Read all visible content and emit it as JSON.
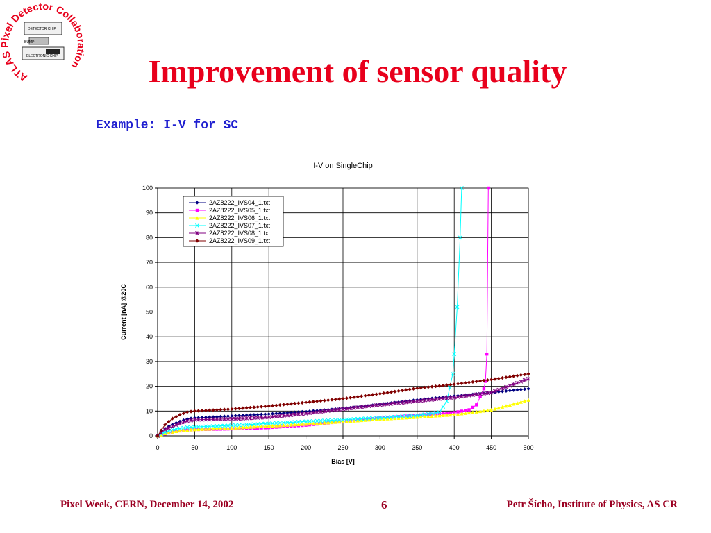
{
  "slide": {
    "title": "Improvement of sensor quality",
    "subtitle": "Example: I-V for SC",
    "footer_left": "Pixel Week, CERN, December 14,  2002",
    "page_number": "6",
    "footer_right": "Petr Šícho, Institute of Physics, AS CR"
  },
  "logo": {
    "ring_text": "ATLAS Pixel Detector Collaboration",
    "labels": [
      "DETECTOR CHIP",
      "BUMP",
      "ELECTRONIC CHIP"
    ],
    "color": "#e8001c"
  },
  "chart_data": {
    "type": "line",
    "title": "I-V on SingleChip",
    "xlabel": "Bias [V]",
    "ylabel": "Current [nA] @20C",
    "xlim": [
      0,
      500
    ],
    "ylim": [
      0,
      100
    ],
    "xticks": [
      0,
      50,
      100,
      150,
      200,
      250,
      300,
      350,
      400,
      450,
      500
    ],
    "yticks": [
      0,
      10,
      20,
      30,
      40,
      50,
      60,
      70,
      80,
      90,
      100
    ],
    "grid": true,
    "legend_position": "top-left",
    "series": [
      {
        "name": "2AZ8222_IVS04_1.txt",
        "color": "#000080",
        "marker": "diamond",
        "x": [
          0,
          10,
          20,
          30,
          40,
          50,
          100,
          150,
          200,
          250,
          300,
          350,
          400,
          450,
          500
        ],
        "y": [
          0,
          3,
          4.6,
          5.8,
          6.8,
          7.2,
          8,
          8.8,
          9.8,
          11,
          12.7,
          14.5,
          16,
          17.5,
          19
        ]
      },
      {
        "name": "2AZ8222_IVS05_1.txt",
        "color": "#ff00ff",
        "marker": "square",
        "x": [
          0,
          10,
          20,
          30,
          40,
          50,
          100,
          150,
          200,
          250,
          300,
          350,
          380,
          400,
          420,
          430,
          440,
          442,
          444,
          446
        ],
        "y": [
          0,
          0.8,
          1.5,
          2,
          2.3,
          2.5,
          2.8,
          3.3,
          4.3,
          5.8,
          7.2,
          8.3,
          9,
          9.4,
          10.5,
          12.5,
          19,
          22,
          33,
          100
        ]
      },
      {
        "name": "2AZ8222_IVS06_1.txt",
        "color": "#ffff00",
        "marker": "triangle",
        "x": [
          0,
          10,
          20,
          30,
          40,
          50,
          100,
          150,
          200,
          250,
          300,
          350,
          400,
          450,
          500
        ],
        "y": [
          0,
          1,
          1.6,
          2.1,
          2.4,
          2.6,
          3.2,
          4,
          4.8,
          5.8,
          6.8,
          7.6,
          8.6,
          10.5,
          14.5
        ]
      },
      {
        "name": "2AZ8222_IVS07_1.txt",
        "color": "#00ffff",
        "marker": "x",
        "x": [
          0,
          10,
          20,
          30,
          40,
          50,
          100,
          150,
          200,
          250,
          300,
          350,
          380,
          390,
          398,
          400,
          404,
          408,
          410
        ],
        "y": [
          0,
          1.5,
          2.5,
          3,
          3.4,
          3.6,
          4.2,
          5,
          5.8,
          6.5,
          7.3,
          8.2,
          9.5,
          14,
          25,
          33,
          52,
          80,
          100
        ]
      },
      {
        "name": "2AZ8222_IVS08_1.txt",
        "color": "#800080",
        "marker": "star",
        "x": [
          0,
          10,
          20,
          30,
          40,
          50,
          100,
          150,
          200,
          250,
          300,
          350,
          400,
          450,
          500
        ],
        "y": [
          0,
          2.5,
          3.8,
          5,
          6,
          6.5,
          6.8,
          7.5,
          9,
          10.8,
          12.5,
          14,
          15.5,
          17.5,
          23
        ]
      },
      {
        "name": "2AZ8222_IVS09_1.txt",
        "color": "#800000",
        "marker": "diamond",
        "x": [
          0,
          10,
          20,
          30,
          40,
          50,
          100,
          150,
          200,
          250,
          300,
          350,
          400,
          450,
          500
        ],
        "y": [
          0,
          4.5,
          7,
          8.5,
          9.6,
          10,
          10.8,
          12,
          13.5,
          15,
          17,
          19.2,
          20.8,
          22.7,
          25
        ]
      }
    ]
  }
}
